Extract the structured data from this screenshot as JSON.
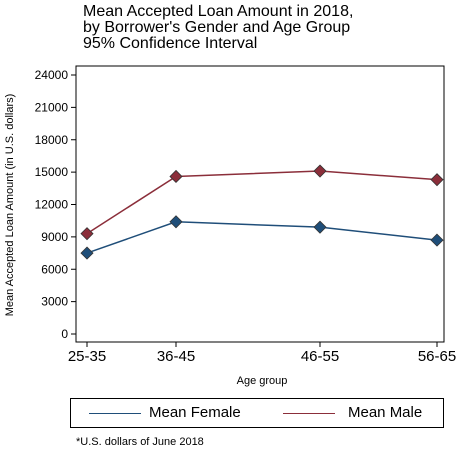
{
  "chart_data": {
    "type": "line",
    "title": [
      "Mean Accepted Loan Amount in 2018,",
      "by Borrower's Gender and Age Group",
      "95% Confidence Interval"
    ],
    "xlabel": "Age group",
    "ylabel": "Mean Accepted Loan Amount (in U.S. dollars)",
    "categories": [
      "25-35",
      "36-45",
      "46-55",
      "56-65"
    ],
    "yticks": [
      "0",
      "3000",
      "6000",
      "9000",
      "12000",
      "15000",
      "18000",
      "21000",
      "24000"
    ],
    "ylim": [
      0,
      24000
    ],
    "grid": false,
    "legend_position": "bottom",
    "series": [
      {
        "name": "Mean Female",
        "color": "#1f4e79",
        "values": [
          7500,
          10400,
          9900,
          8700
        ],
        "marker": "diamond"
      },
      {
        "name": "Mean Male",
        "color": "#8b2e3a",
        "values": [
          9300,
          14600,
          15100,
          14300
        ],
        "marker": "diamond"
      }
    ],
    "footnote": "*U.S. dollars of June 2018"
  }
}
